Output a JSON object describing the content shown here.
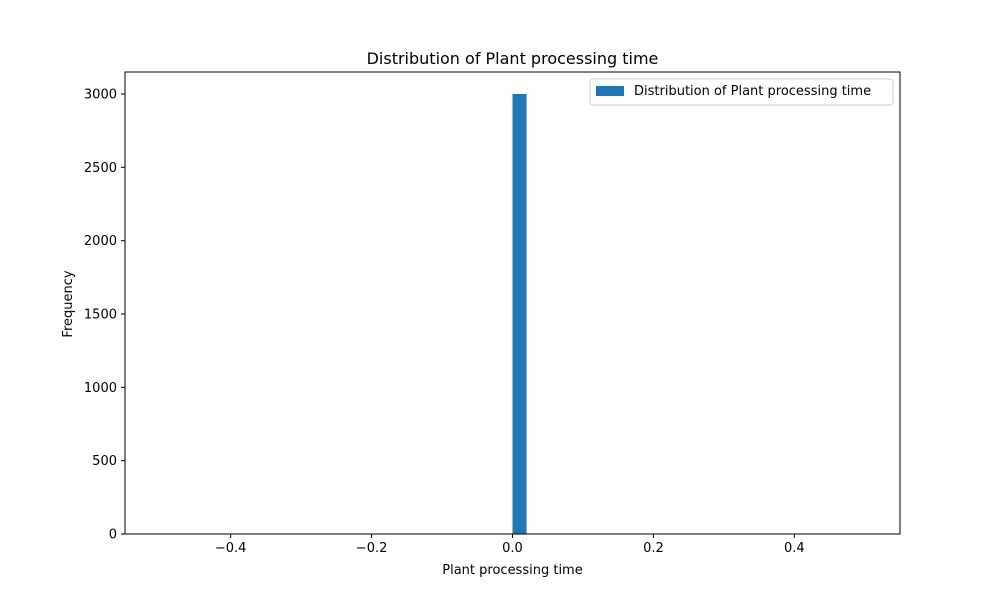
{
  "chart_data": {
    "type": "bar",
    "title": "Distribution of Plant processing time",
    "xlabel": "Plant processing time",
    "ylabel": "Frequency",
    "xlim": [
      -0.55,
      0.55
    ],
    "ylim": [
      0,
      3150
    ],
    "x_ticks": [
      -0.4,
      -0.2,
      0.0,
      0.2,
      0.4
    ],
    "x_tick_labels": [
      "−0.4",
      "−0.2",
      "0.0",
      "0.2",
      "0.4"
    ],
    "y_ticks": [
      0,
      500,
      1000,
      1500,
      2000,
      2500,
      3000
    ],
    "y_tick_labels": [
      "0",
      "500",
      "1000",
      "1500",
      "2000",
      "2500",
      "3000"
    ],
    "bins": [
      {
        "x0": 0.0,
        "x1": 0.02,
        "count": 3000
      }
    ],
    "legend": {
      "placement": "top-right",
      "entries": [
        {
          "label": "Distribution of Plant processing time",
          "color": "#1f77b4"
        }
      ]
    },
    "grid": false,
    "bar_color": "#1f77b4"
  }
}
